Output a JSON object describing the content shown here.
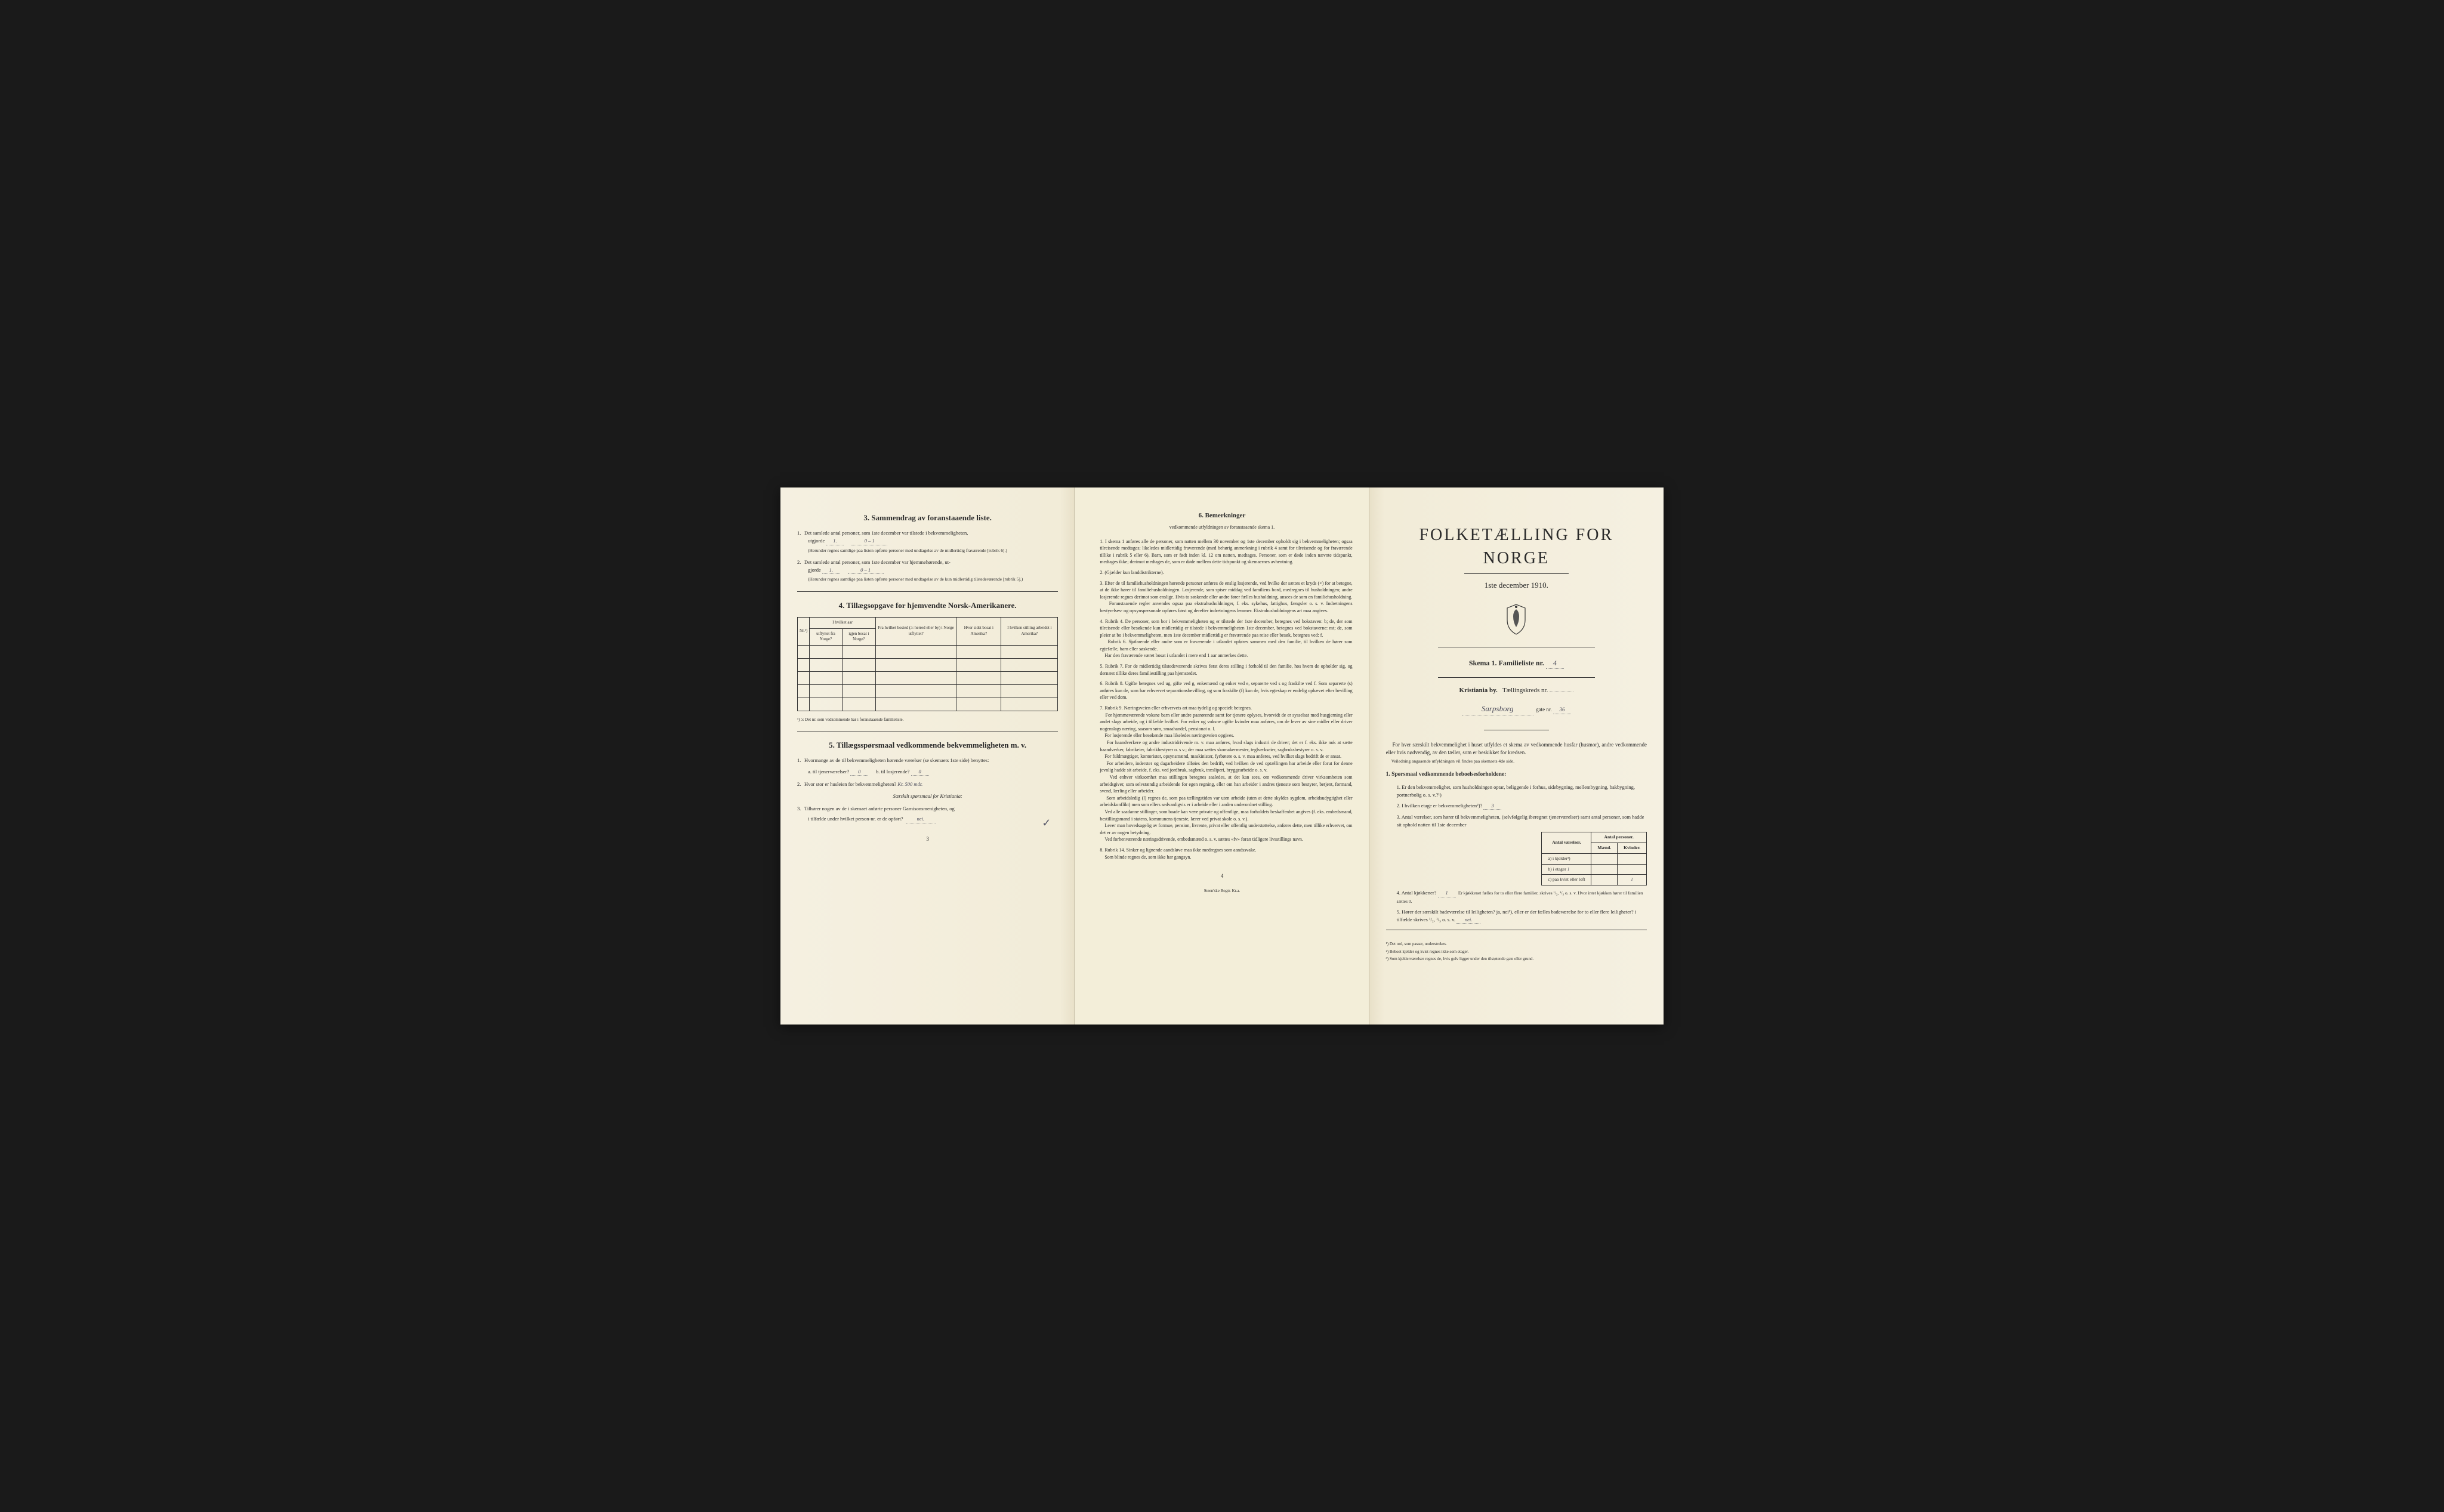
{
  "page3": {
    "heading": "3.   Sammendrag av foranstaaende liste.",
    "q1": "Det samlede antal personer, som 1ste december var tilstede i bekvemmeligheten,",
    "q1b": "utgjorde",
    "q1_val": "1.",
    "q1_val2": "0 – 1",
    "q1_paren": "(Herunder regnes samtlige paa listen opførte personer med undtagelse av de midlertidig fraværende [rubrik 6].)",
    "q2": "Det samlede antal personer, som 1ste december var hjemmehørende, ut-",
    "q2b": "gjorde",
    "q2_val": "1.",
    "q2_val2": "0 – 1",
    "q2_paren": "(Herunder regnes samtlige paa listen opførte personer med undtagelse av de kun midlertidig tilstedeværende [rubrik 5].)",
    "heading4": "4.   Tillægsopgave for hjemvendte Norsk-Amerikanere.",
    "table_headers": {
      "nr": "Nr.¹)",
      "hvilket_aar": "I hvilket aar",
      "utflyttet": "utflyttet fra Norge?",
      "igjen": "igjen bosat i Norge?",
      "bosted": "Fra hvilket bosted (ɔ: herred eller by) i Norge utflyttet?",
      "amerika": "Hvor sidst bosat i Amerika?",
      "stilling": "I hvilken stilling arbeidet i Amerika?"
    },
    "table_footnote": "¹) ɔ: Det nr. som vedkommende har i foranstaaende familieliste.",
    "heading5": "5.   Tillægsspørsmaal vedkommende bekvemmeligheten m. v.",
    "q5_1": "Hvormange av de til bekvemmeligheten hørende værelser (se skemaets 1ste side) benyttes:",
    "q5_1a": "a. til tjenerværelser?",
    "q5_1a_val": "0",
    "q5_1b": "b. til losjerende?",
    "q5_1b_val": "0",
    "q5_2": "Hvor stor er husleien for bekvemmeligheten?",
    "q5_2_val": "Kr. 500 mdr.",
    "q5_special": "Særskilt spørsmaal for Kristiania:",
    "q5_3": "Tilhører nogen av de i skemaet anførte personer Garnisonsmenigheten, og",
    "q5_3b": "i tilfælde under hvilket person-nr. er de opført?",
    "q5_3_val": "nei.",
    "pagenum": "3"
  },
  "page4": {
    "heading": "6.   Bemerkninger",
    "subtitle": "vedkommende utfyldningen av foranstaaende skema 1.",
    "items": [
      "I skema 1 anføres alle de personer, som natten mellem 30 november og 1ste december opholdt sig i bekvemmeligheten; ogsaa tilreisende medtages; likeledes midlertidig fraværende (med behørig anmerkning i rubrik 4 samt for tilreisende og for fraværende tillike i rubrik 5 eller 6). Barn, som er født inden kl. 12 om natten, medtages. Personer, som er døde inden nævnte tidspunkt, medtages ikke; derimot medtages de, som er døde mellem dette tidspunkt og skemaernes avhentning.",
      "(Gjælder kun landdistrikterne).",
      "Efter de til familiehusholdningen hørende personer anføres de enslig losjerende, ved hvilke der sættes et kryds (×) for at betegne, at de ikke hører til familiehusholdningen. Losjerende, som spiser middag ved familiens bord, medregnes til husholdningen; andre losjerende regnes derimot som enslige. Hvis to søskende eller andre fører fælles husholdning, ansees de som en familiehusholdning.\nForanstaaende regler anvendes ogsaa paa ekstrahusholdninger, f. eks. sykehus, fattighus, fængsler o. s. v. Indretningens bestyrelses- og opsynspersonale opføres først og derefter indretningens lemmer. Ekstrahusholdningens art maa angives.",
      "Rubrik 4. De personer, som bor i bekvemmeligheten og er tilstede der 1ste december, betegnes ved bokstaven: b; de, der som tilreisende eller besøkende kun midlertidig er tilstede i bekvemmeligheten 1ste december, betegnes ved bokstaverne: mt; de, som pleier at bo i bekvemmeligheten, men 1ste december midlertidig er fraværende paa reise eller besøk, betegnes ved: f.\nRubrik 6. Sjøfarende eller andre som er fraværende i utlandet opføres sammen med den familie, til hvilken de hører som egtefælle, barn eller søskende.\nHar den fraværende været bosat i utlandet i mere end 1 aar anmerkes dette.",
      "Rubrik 7. For de midlertidig tilstedeværende skrives først deres stilling i forhold til den familie, hos hvem de opholder sig, og dernæst tillike deres familiestilling paa hjemstedet.",
      "Rubrik 8. Ugifte betegnes ved ug, gifte ved g, enkemænd og enker ved e, separerte ved s og fraskilte ved f. Som separerte (s) anføres kun de, som har erhvervet separationsbevilling, og som fraskilte (f) kun de, hvis egteskap er endelig ophævet efter bevilling eller ved dom.",
      "Rubrik 9. Næringsveien eller erhvervets art maa tydelig og specielt betegnes.\nFor hjemmeværende voksne barn eller andre paarørende samt for tjenere oplyses, hvorvidt de er sysselsat med husgjerning eller andet slags arbeide, og i tilfælde hvilket. For enker og voksne ugifte kvinder maa anføres, om de lever av sine midler eller driver nogenslags næring, saasom søm, smaahandel, pensionat o. l.\nFor losjerende eller besøkende maa likeledes næringsveien opgives.\nFor haandverkere og andre industridrivende m. v. maa anføres, hvad slags industri de driver; det er f. eks. ikke nok at sætte haandverker, fabrikeier, fabrikbestyrer o. s v.; der maa sættes skomakermester, teglverkseier, sagbruksbestyrer o. s. v.\nFor fuldmægtiger, kontorister, opsynsmænd, maskinister, fyrbøtere o. s. v. maa anføres, ved hvilket slags bedrift de er ansat.\nFor arbeidere, inderster og dagarbeidere tilføies den bedrift, ved hvilken de ved optællingen har arbeide eller forut for denne jevnlig hadde sit arbeide, f. eks. ved jordbruk, sagbruk, træsliperi, bryggearbeide o. s. v.\nVed enhver virksomhet maa stillingen betegnes saaledes, at det kan sees, om vedkommende driver virksomheten som arbeidsgiver, som selvstændig arbeidende for egen regning, eller om han arbeider i andres tjeneste som bestyrer, betjent, formand, svend, lærling eller arbeider.\nSom arbeidsledig (l) regnes de, som paa tællingstiden var uten arbeide (uten at dette skyldes sygdom, arbeidsudygtighet eller arbeidskonflikt) men som ellers sedvanligvis er i arbeide eller i anden underordnet stilling.\nVed alle saadanne stillinger, som baade kan være private og offentlige, maa forholdets beskaffenhet angives (f. eks. embedsmand, bestillingsmand i statens, kommunens tjeneste, lærer ved privat skole o. s. v.).\nLever man hovedsagelig av formue, pension, livrente, privat eller offentlig understøttelse, anføres dette, men tillike erhvervet, om det er av nogen betydning.\nVed forhenværende næringsdrivende, embedsmænd o. s. v. sættes «fv» foran tidligere livsstillings navn.",
      "Rubrik 14. Sinker og lignende aandsløve maa ikke medregnes som aandssvake.\nSom blinde regnes de, som ikke har gangsyn."
    ],
    "pagenum": "4",
    "printer": "Steen'ske Bogtr.  Kr.a."
  },
  "page1": {
    "title": "FOLKETÆLLING FOR NORGE",
    "date": "1ste december 1910.",
    "skema": "Skema 1.   Familieliste nr.",
    "skema_val": "4",
    "city": "Kristiania by.",
    "kreds_label": "Tællingskreds nr.",
    "street": "Sarpsborg",
    "gate_label": "gate nr.",
    "gate_nr": "36",
    "intro": "For hver særskilt bekvemmelighet i huset utfyldes et skema av vedkommende husfar (husmor), andre vedkommende eller hvis nødvendig, av den tæller, som er beskikket for kredsen.",
    "intro2": "Veiledning angaaende utfyldningen vil findes paa skemaets 4de side.",
    "q_heading": "1. Spørsmaal vedkommende beboelsesforholdene:",
    "q1": "Er den bekvemmelighet, som husholdningen optar, beliggende i forhus, sidebygning, mellembygning, bakbygning, portnerbolig o. s. v.?¹)",
    "q2": "I hvilken etage er bekvemmeligheten²)?",
    "q2_val": "3",
    "q3": "Antal værelser, som hører til bekvemmeligheten, (selvfølgelig iberegnet tjenerværelser) samt antal personer, som hadde sit ophold natten til 1ste december",
    "rooms_table": {
      "h1": "Antal værelser.",
      "h2": "Antal personer.",
      "h2a": "Mænd.",
      "h2b": "Kvinder.",
      "r1": "a) i kjelder³)",
      "r2": "b) i etager",
      "r3": "c) paa kvist eller loft",
      "v_b": "1",
      "v_c_k": "1"
    },
    "q4": "Antal kjøkkener?",
    "q4_val": "1",
    "q4b": "Er kjøkkenet fælles for to eller flere familier, skrives ¹/₂, ¹/₃ o. s. v. Hvor intet kjøkken hører til familien sættes 0.",
    "q5": "Hører der særskilt badeværelse til leiligheten? ja, nei¹), eller er der fælles badeværelse for to eller flere leiligheter? i tilfælde skrives ¹/₂, ¹/₃ o. s. v.",
    "q5_val": "nei.",
    "footnotes": [
      "¹) Det ord, som passer, understrekes.",
      "²) Beboet kjelder og kvist regnes ikke som etager.",
      "³) Som kjelderværelser regnes de, hvis gulv ligger under den tilstøtende gate eller grund."
    ]
  },
  "colors": {
    "paper": "#f5f0e1",
    "ink": "#2a2a2a",
    "handwriting": "#4a4a5a",
    "border": "#333333"
  }
}
